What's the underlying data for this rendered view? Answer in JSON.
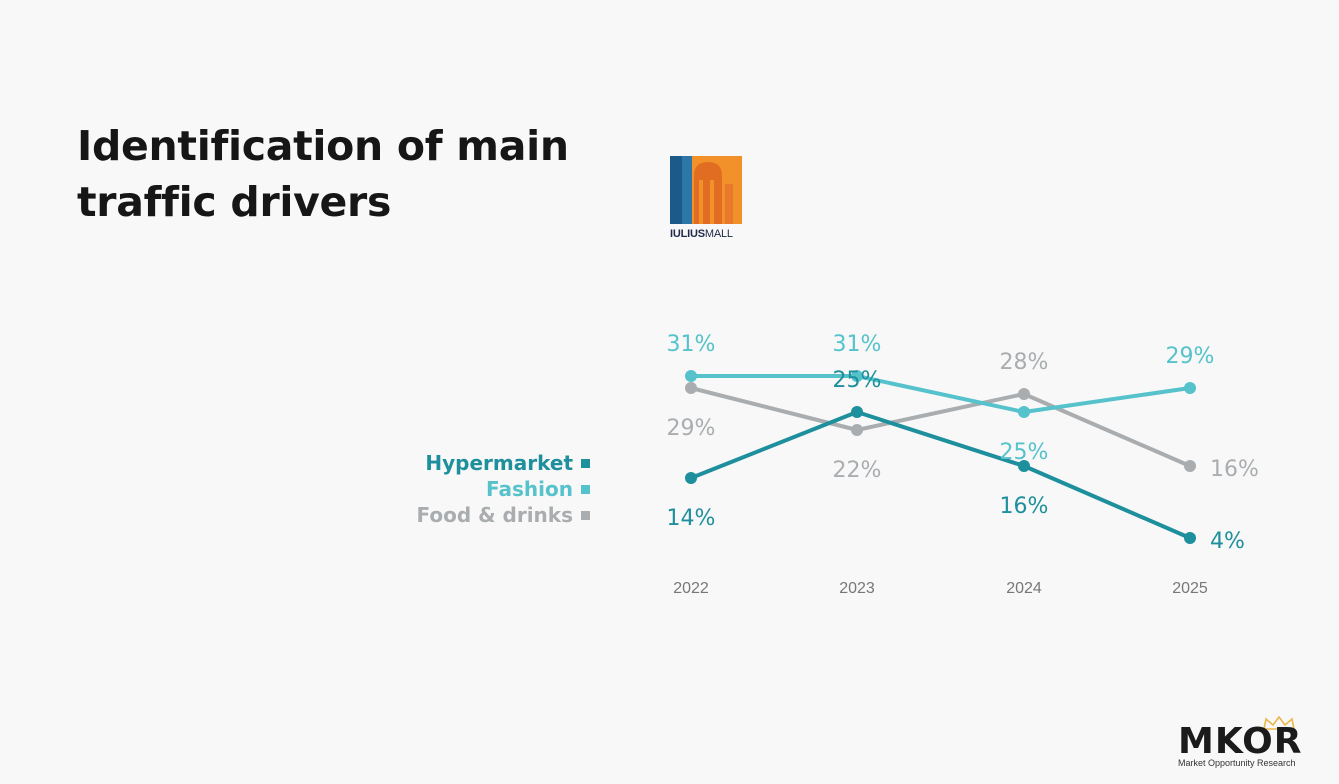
{
  "slide": {
    "title_line1": "Identification of main",
    "title_line2": "traffic drivers"
  },
  "logo": {
    "text_bold": "IULIUS",
    "text_regular": "MALL",
    "colors": [
      "#1c5a8a",
      "#f2902a",
      "#e8792a"
    ]
  },
  "brand": {
    "name": "MKOR",
    "tagline": "Market Opportunity Research",
    "icon": "crown-icon"
  },
  "chart_data": {
    "type": "line",
    "title": "",
    "xlabel": "",
    "ylabel": "",
    "x": [
      "2022",
      "2023",
      "2024",
      "2025"
    ],
    "ylim": [
      0,
      35
    ],
    "grid": false,
    "legend_position": "left",
    "series": [
      {
        "name": "Hypermarket",
        "color": "#1e8f9c",
        "values": [
          14,
          25,
          16,
          4
        ],
        "labels": [
          "14%",
          "25%",
          "16%",
          "4%"
        ]
      },
      {
        "name": "Fashion",
        "color": "#55c2cc",
        "values": [
          31,
          31,
          25,
          29
        ],
        "labels": [
          "31%",
          "31%",
          "25%",
          "29%"
        ]
      },
      {
        "name": "Food & drinks",
        "color": "#a9adb0",
        "values": [
          29,
          22,
          28,
          16
        ],
        "labels": [
          "29%",
          "22%",
          "28%",
          "16%"
        ]
      }
    ]
  }
}
